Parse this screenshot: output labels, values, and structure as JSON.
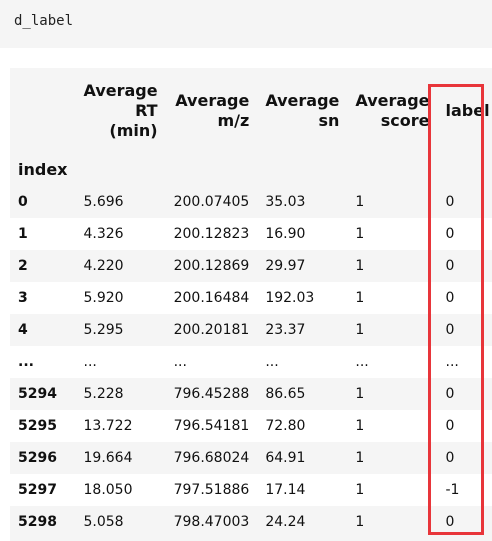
{
  "code_cell": {
    "text": "d_label"
  },
  "table": {
    "columns": [
      [
        "Average",
        "RT",
        "(min)"
      ],
      [
        "Average",
        "m/z"
      ],
      [
        "Average",
        "sn"
      ],
      [
        "Average",
        "score"
      ],
      [
        "label"
      ]
    ],
    "index_name": "index",
    "rows": [
      [
        "0",
        "5.696",
        "200.07405",
        "35.03",
        "1",
        "0"
      ],
      [
        "1",
        "4.326",
        "200.12823",
        "16.90",
        "1",
        "0"
      ],
      [
        "2",
        "4.220",
        "200.12869",
        "29.97",
        "1",
        "0"
      ],
      [
        "3",
        "5.920",
        "200.16484",
        "192.03",
        "1",
        "0"
      ],
      [
        "4",
        "5.295",
        "200.20181",
        "23.37",
        "1",
        "0"
      ],
      [
        "...",
        "...",
        "...",
        "...",
        "...",
        "..."
      ],
      [
        "5294",
        "5.228",
        "796.45288",
        "86.65",
        "1",
        "0"
      ],
      [
        "5295",
        "13.722",
        "796.54181",
        "72.80",
        "1",
        "0"
      ],
      [
        "5296",
        "19.664",
        "796.68024",
        "64.91",
        "1",
        "0"
      ],
      [
        "5297",
        "18.050",
        "797.51886",
        "17.14",
        "1",
        "-1"
      ],
      [
        "5298",
        "5.058",
        "798.47003",
        "24.24",
        "1",
        "0"
      ]
    ]
  },
  "highlight": {
    "color": "#e8353a",
    "column": "label"
  }
}
